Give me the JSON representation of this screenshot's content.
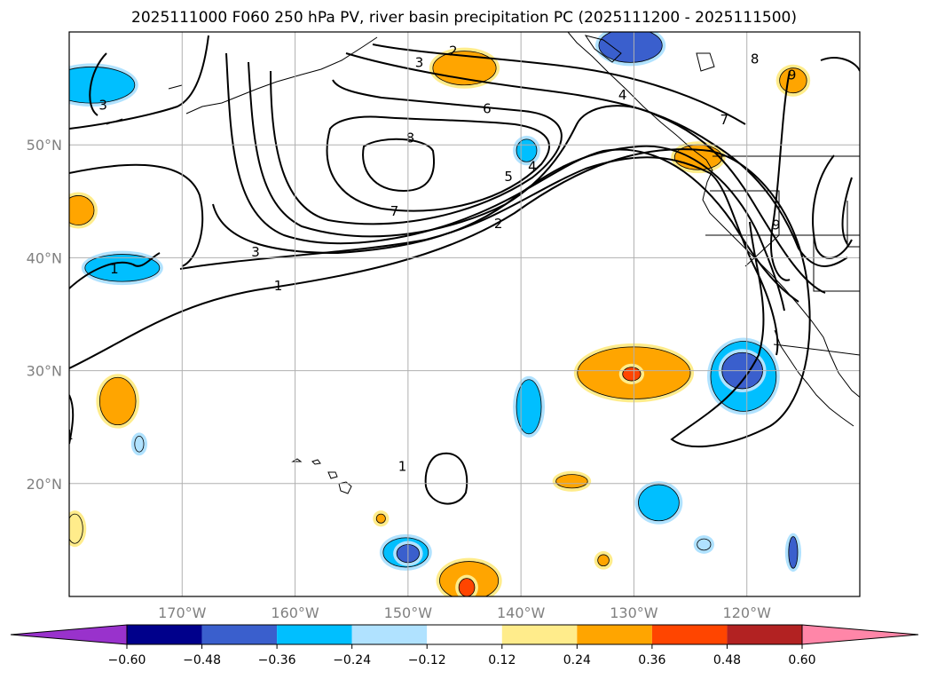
{
  "chart_data": {
    "type": "contour-map",
    "title": "2025111000 F060 250 hPa PV, river basin precipitation PC (2025111200 - 2025111500)",
    "extent": {
      "lon_min": -180,
      "lon_max": -110,
      "lat_min": 10,
      "lat_max": 60
    },
    "lon_ticks": [
      {
        "lon": -170,
        "label": "170°W"
      },
      {
        "lon": -160,
        "label": "160°W"
      },
      {
        "lon": -150,
        "label": "150°W"
      },
      {
        "lon": -140,
        "label": "140°W"
      },
      {
        "lon": -130,
        "label": "130°W"
      },
      {
        "lon": -120,
        "label": "120°W"
      }
    ],
    "lat_ticks": [
      {
        "lat": 50,
        "label": "50°N"
      },
      {
        "lat": 40,
        "label": "40°N"
      },
      {
        "lat": 30,
        "label": "30°N"
      },
      {
        "lat": 20,
        "label": "20°N"
      }
    ],
    "colorbar": {
      "levels": [
        -0.6,
        -0.48,
        -0.36,
        -0.24,
        -0.12,
        0.12,
        0.24,
        0.36,
        0.48,
        0.6
      ],
      "tick_labels": [
        "−0.60",
        "−0.48",
        "−0.36",
        "−0.24",
        "−0.12",
        "0.12",
        "0.24",
        "0.36",
        "0.48",
        "0.60"
      ],
      "colors": [
        "#9932cc",
        "#00008b",
        "#3a5fcd",
        "#00bfff",
        "#b0e2ff",
        "#ffffff",
        "#ffec8b",
        "#ffa500",
        "#ff4500",
        "#b22222",
        "#ff86a8"
      ],
      "extend": "both"
    },
    "pv_contour_labels": [
      {
        "text": "1",
        "lon": -161.5,
        "lat": 37.5
      },
      {
        "text": "1",
        "lon": -176,
        "lat": 39
      },
      {
        "text": "1",
        "lon": -150.5,
        "lat": 21.5
      },
      {
        "text": "1",
        "lon": -180,
        "lat": 24.3
      },
      {
        "text": "2",
        "lon": -142,
        "lat": 43
      },
      {
        "text": "2",
        "lon": -146,
        "lat": 58.3
      },
      {
        "text": "3",
        "lon": -163.5,
        "lat": 40.5
      },
      {
        "text": "3",
        "lon": -149,
        "lat": 57.3
      },
      {
        "text": "3",
        "lon": -177,
        "lat": 53.5
      },
      {
        "text": "4",
        "lon": -139,
        "lat": 48.1
      },
      {
        "text": "4",
        "lon": -131,
        "lat": 54.4
      },
      {
        "text": "5",
        "lon": -141.1,
        "lat": 47.2
      },
      {
        "text": "6",
        "lon": -143,
        "lat": 53.2
      },
      {
        "text": "7",
        "lon": -151.2,
        "lat": 44.1
      },
      {
        "text": "7",
        "lon": -122,
        "lat": 52.2
      },
      {
        "text": "8",
        "lon": -149.8,
        "lat": 50.6
      },
      {
        "text": "8",
        "lon": -119.3,
        "lat": 57.6
      },
      {
        "text": "9",
        "lon": -117.4,
        "lat": 42.9
      },
      {
        "text": "9",
        "lon": -116,
        "lat": 56.2
      }
    ],
    "precip_pc_blobs": [
      {
        "lon": -178,
        "lat": 55.3,
        "rx": 3.8,
        "ry": 1.6,
        "value": -0.3
      },
      {
        "lon": -175.3,
        "lat": 39.1,
        "rx": 3.3,
        "ry": 1.2,
        "value": -0.3
      },
      {
        "lon": -179.2,
        "lat": 44.2,
        "rx": 1.4,
        "ry": 1.3,
        "value": 0.3
      },
      {
        "lon": -175.7,
        "lat": 27.3,
        "rx": 1.6,
        "ry": 2.1,
        "value": 0.3
      },
      {
        "lon": -173.8,
        "lat": 23.5,
        "rx": 0.4,
        "ry": 0.7,
        "value": -0.2
      },
      {
        "lon": -179.5,
        "lat": 16,
        "rx": 0.7,
        "ry": 1.3,
        "value": 0.2
      },
      {
        "lon": -145,
        "lat": 56.8,
        "rx": 2.8,
        "ry": 1.5,
        "value": 0.3
      },
      {
        "lon": -130.3,
        "lat": 58.8,
        "rx": 2.8,
        "ry": 1.5,
        "value": -0.4
      },
      {
        "lon": -139.5,
        "lat": 49.5,
        "rx": 0.9,
        "ry": 1.0,
        "value": -0.3
      },
      {
        "lon": -124.3,
        "lat": 48.9,
        "rx": 2.1,
        "ry": 1.1,
        "value": 0.3
      },
      {
        "lon": -115.9,
        "lat": 55.7,
        "rx": 1.2,
        "ry": 1.1,
        "value": 0.3
      },
      {
        "lon": -130,
        "lat": 29.8,
        "rx": 5,
        "ry": 2.3,
        "value": 0.3
      },
      {
        "lon": -130.2,
        "lat": 29.7,
        "rx": 0.8,
        "ry": 0.6,
        "value": 0.4
      },
      {
        "lon": -120.3,
        "lat": 29.5,
        "rx": 2.9,
        "ry": 3.1,
        "value": -0.3
      },
      {
        "lon": -120.4,
        "lat": 30,
        "rx": 1.8,
        "ry": 1.6,
        "value": -0.45
      },
      {
        "lon": -139.3,
        "lat": 26.8,
        "rx": 1.1,
        "ry": 2.4,
        "value": -0.3
      },
      {
        "lon": -135.5,
        "lat": 20.2,
        "rx": 1.4,
        "ry": 0.6,
        "value": 0.3
      },
      {
        "lon": -127.8,
        "lat": 18.3,
        "rx": 1.8,
        "ry": 1.6,
        "value": -0.3
      },
      {
        "lon": -123.8,
        "lat": 14.6,
        "rx": 0.6,
        "ry": 0.5,
        "value": -0.2
      },
      {
        "lon": -115.9,
        "lat": 13.9,
        "rx": 0.4,
        "ry": 1.4,
        "value": -0.4
      },
      {
        "lon": -150.2,
        "lat": 13.9,
        "rx": 2.0,
        "ry": 1.3,
        "value": -0.3
      },
      {
        "lon": -150,
        "lat": 13.8,
        "rx": 1.0,
        "ry": 0.8,
        "value": -0.45
      },
      {
        "lon": -144.6,
        "lat": 11.4,
        "rx": 2.6,
        "ry": 1.7,
        "value": 0.3
      },
      {
        "lon": -144.8,
        "lat": 10.8,
        "rx": 0.7,
        "ry": 0.8,
        "value": 0.4
      },
      {
        "lon": -132.7,
        "lat": 13.2,
        "rx": 0.5,
        "ry": 0.5,
        "value": 0.3
      },
      {
        "lon": -152.4,
        "lat": 16.9,
        "rx": 0.4,
        "ry": 0.4,
        "value": 0.3
      }
    ]
  }
}
